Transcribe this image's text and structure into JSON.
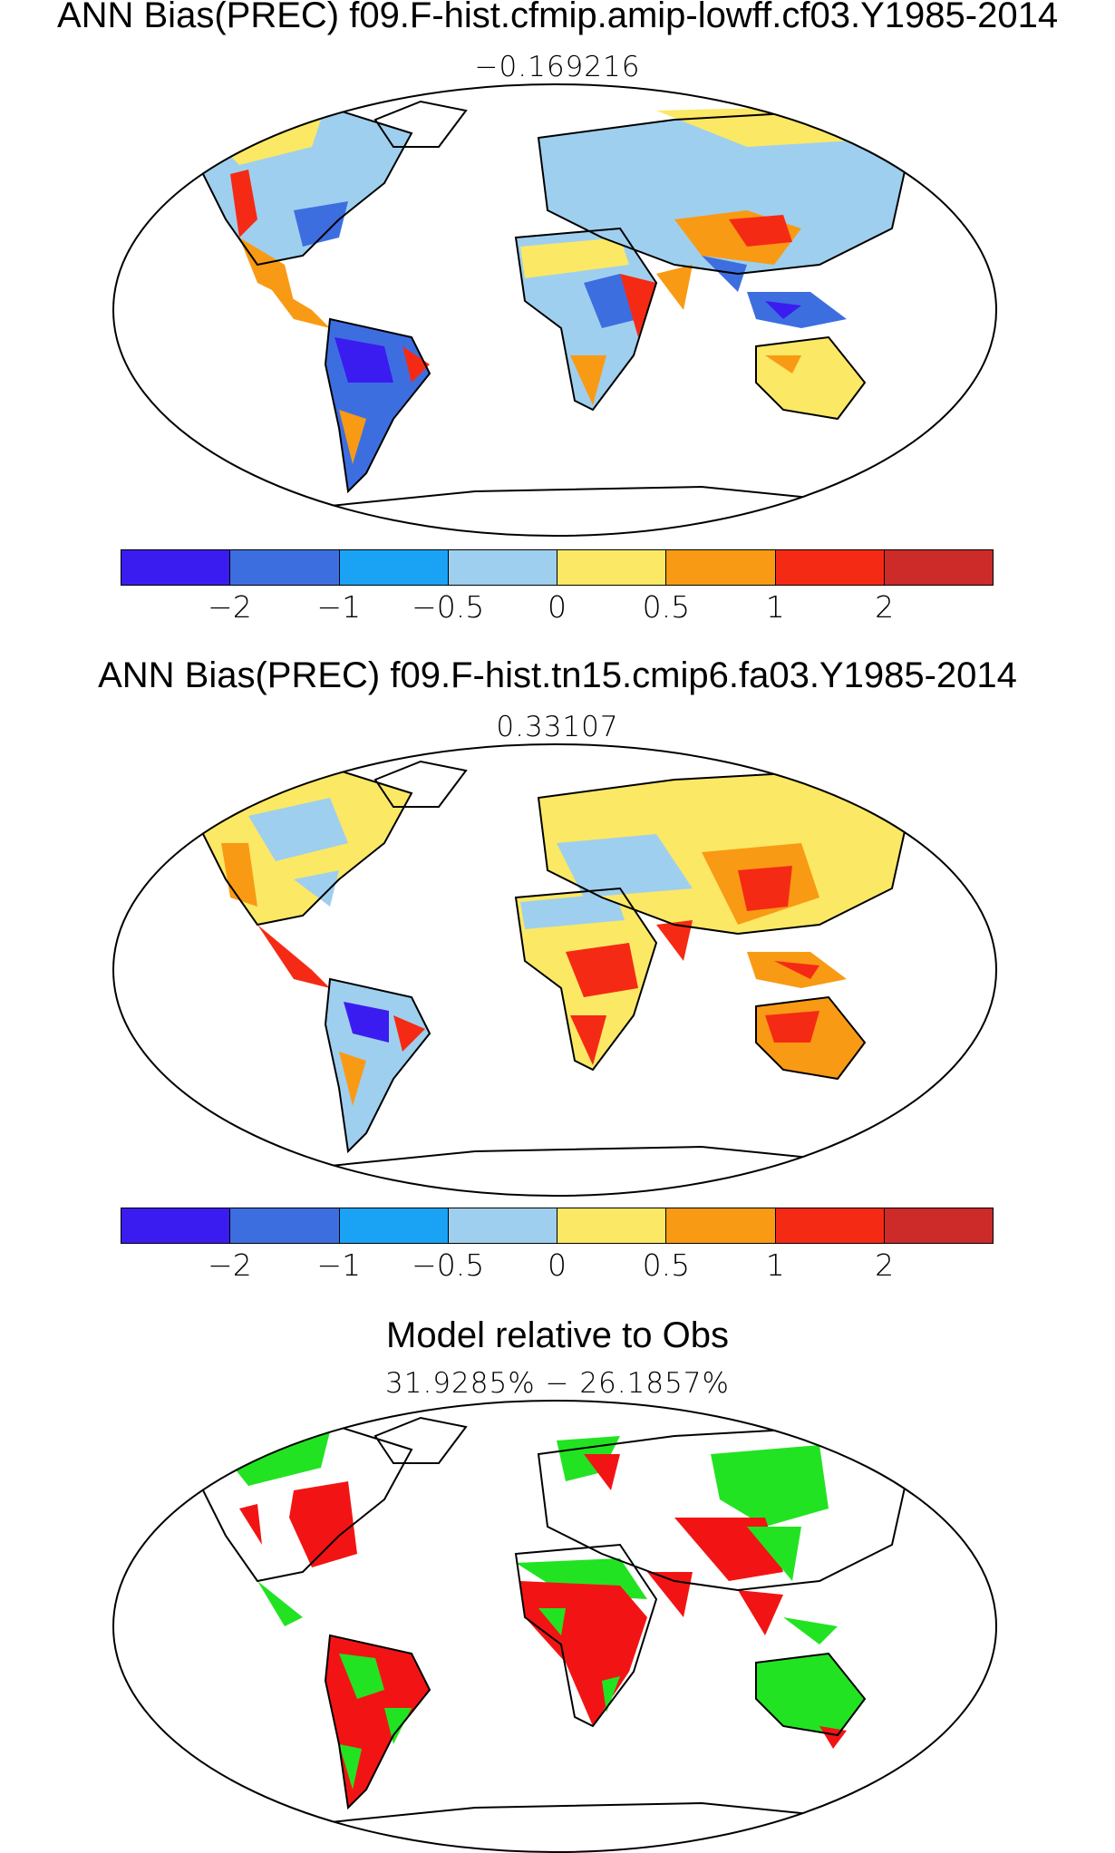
{
  "panel1": {
    "title": "ANN Bias(PREC) f09.F-hist.cfmip.amip-lowff.cf03.Y1985-2014",
    "subtitle": "−0.169216"
  },
  "panel2": {
    "title": "ANN Bias(PREC) f09.F-hist.tn15.cmip6.fa03.Y1985-2014",
    "subtitle": "0.33107"
  },
  "panel3": {
    "title": "Model relative to Obs",
    "subtitle": "31.9285% − 26.1857%"
  },
  "colorbar": {
    "colors": [
      "#3b1cf0",
      "#3d6ee0",
      "#1aa3f5",
      "#9fcfee",
      "#fbe865",
      "#f99a14",
      "#f52a14",
      "#cd2a2a"
    ],
    "tick_labels": [
      "−2",
      "−1",
      "−0.5",
      "0",
      "0.5",
      "1",
      "2"
    ]
  },
  "legend_colors": {
    "better": "#22e322",
    "worse": "#f21414"
  }
}
